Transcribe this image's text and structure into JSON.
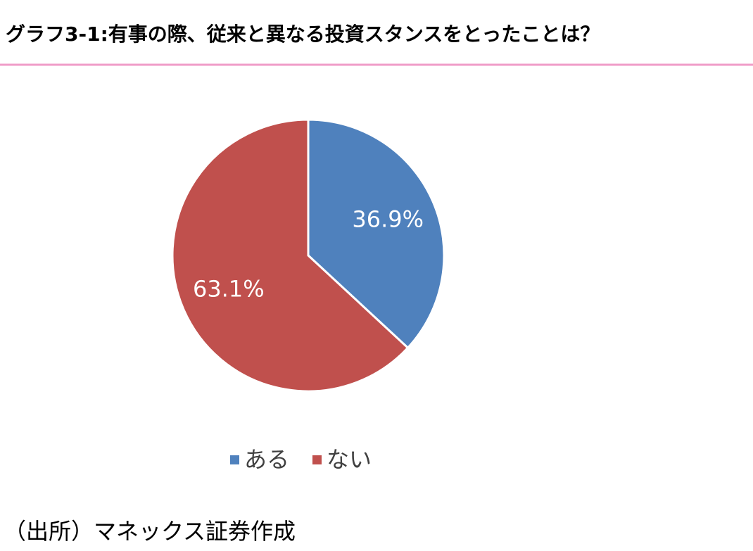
{
  "chart_data": {
    "type": "pie",
    "title": "グラフ3-1:有事の際、従来と異なる投資スタンスをとったことは？",
    "categories": [
      "ある",
      "ない"
    ],
    "values": [
      36.9,
      63.1
    ],
    "value_labels": [
      "36.9%",
      "63.1%"
    ],
    "colors": [
      "#4f81bd",
      "#c0504d"
    ],
    "source": "（出所）マネックス証券作成"
  }
}
